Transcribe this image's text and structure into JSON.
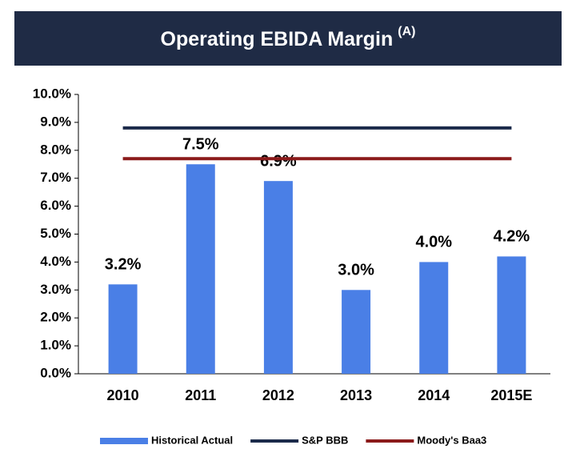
{
  "chart_data": {
    "type": "bar",
    "title": "Operating EBIDA Margin",
    "title_superscript": "(A)",
    "categories": [
      "2010",
      "2011",
      "2012",
      "2013",
      "2014",
      "2015E"
    ],
    "series": [
      {
        "name": "Historical Actual",
        "type": "bar",
        "color": "#4a7fe6",
        "values": [
          3.2,
          7.5,
          6.9,
          3.0,
          4.0,
          4.2
        ],
        "value_labels": [
          "3.2%",
          "7.5%",
          "6.9%",
          "3.0%",
          "4.0%",
          "4.2%"
        ]
      },
      {
        "name": "S&P BBB",
        "type": "line",
        "color": "#1b2a4a",
        "values": [
          8.8,
          8.8,
          8.8,
          8.8,
          8.8,
          8.8
        ]
      },
      {
        "name": "Moody's Baa3",
        "type": "line",
        "color": "#8b1a1a",
        "values": [
          7.7,
          7.7,
          7.7,
          7.7,
          7.7,
          7.7
        ]
      }
    ],
    "ylim": [
      0,
      10
    ],
    "yticks": [
      {
        "value": 0,
        "label": "0.0%"
      },
      {
        "value": 1,
        "label": "1.0%"
      },
      {
        "value": 2,
        "label": "2.0%"
      },
      {
        "value": 3,
        "label": "3.0%"
      },
      {
        "value": 4,
        "label": "4.0%"
      },
      {
        "value": 5,
        "label": "5.0%"
      },
      {
        "value": 6,
        "label": "6.0%"
      },
      {
        "value": 7,
        "label": "7.0%"
      },
      {
        "value": 8,
        "label": "8.0%"
      },
      {
        "value": 9,
        "label": "9.0%"
      },
      {
        "value": 10,
        "label": "10.0%"
      }
    ],
    "legend": "bottom"
  }
}
